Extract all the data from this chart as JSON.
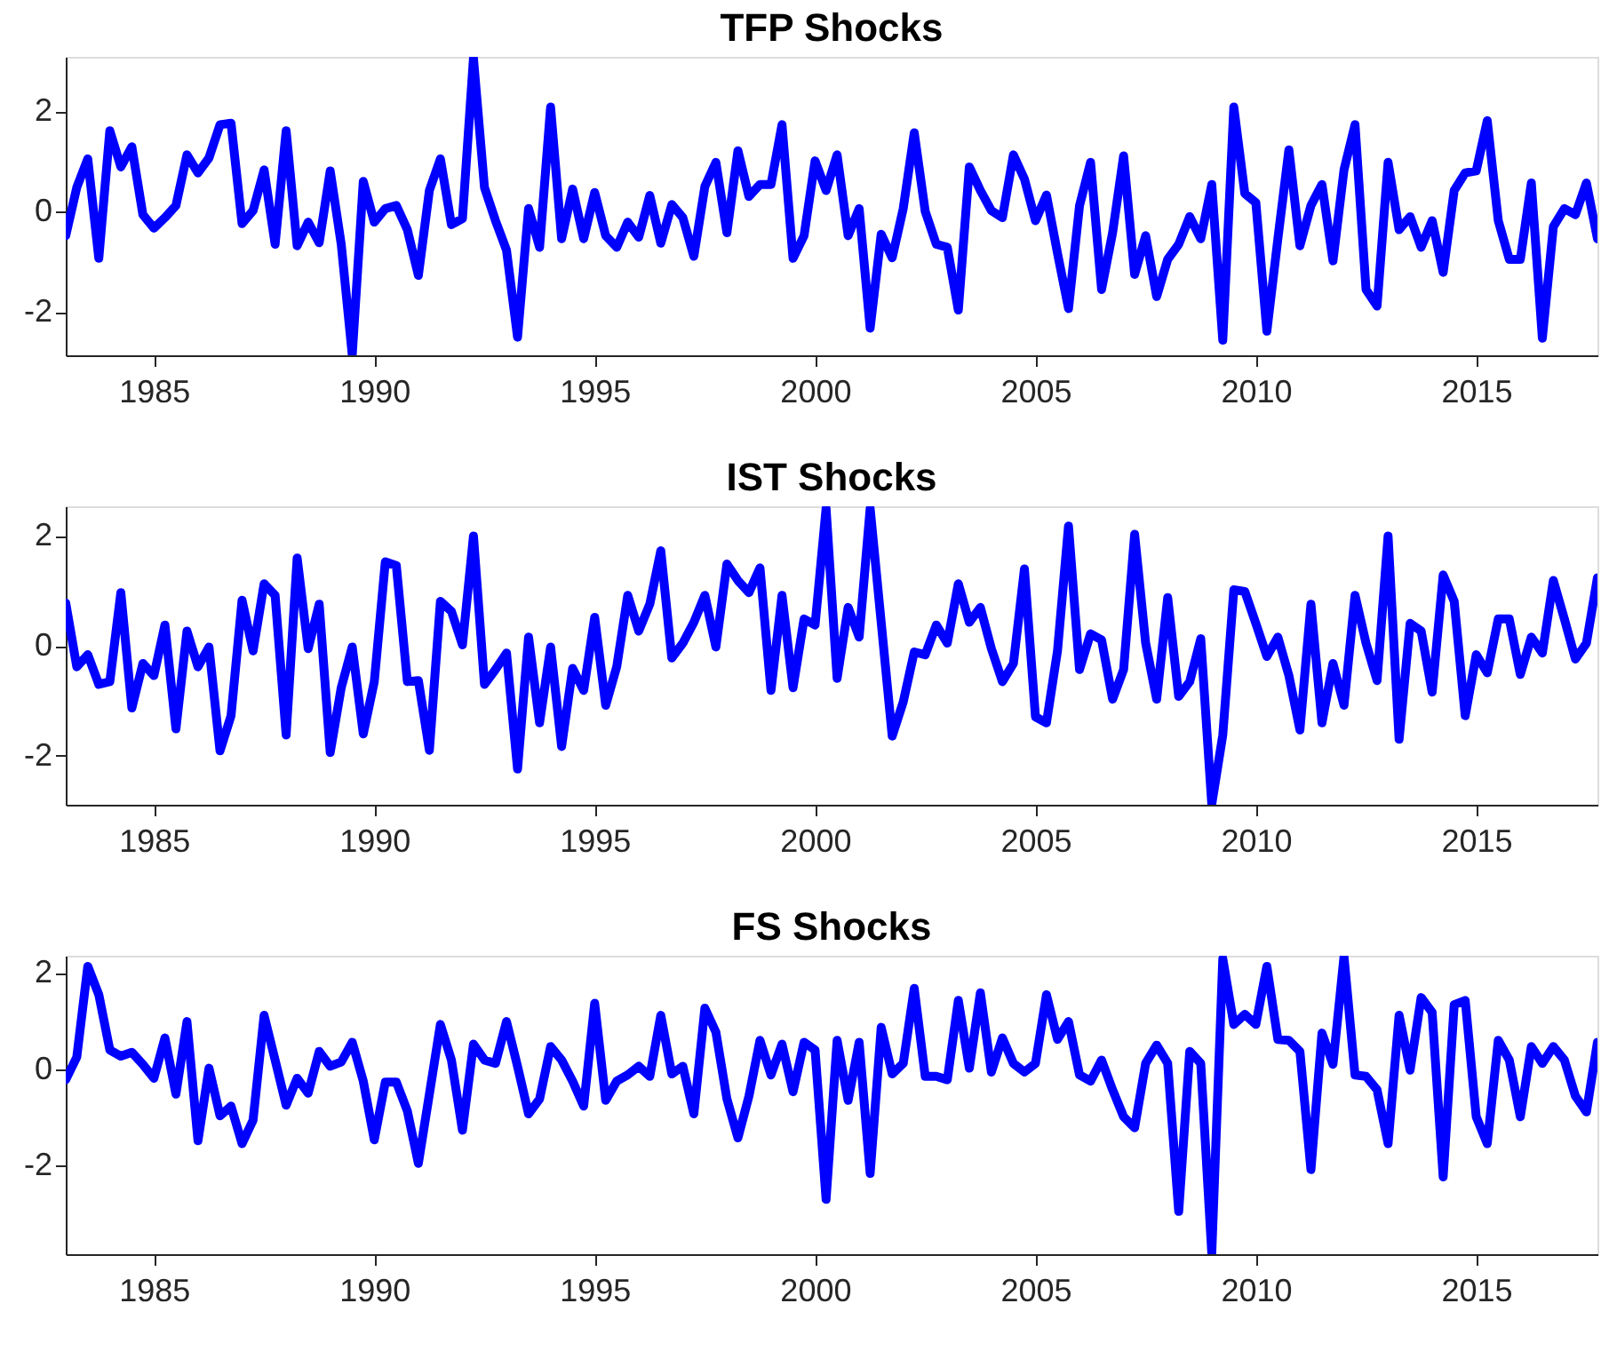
{
  "chart_data": [
    {
      "type": "line",
      "title": "TFP Shocks",
      "xlim": [
        1983,
        2017.75
      ],
      "xticks": [
        1985,
        1990,
        1995,
        2000,
        2005,
        2010,
        2015
      ],
      "ylim": [
        -2.86,
        3.08
      ],
      "yticks": [
        -2,
        0,
        2
      ],
      "grid": false,
      "x": [
        1983,
        1983.25,
        1983.5,
        1983.75,
        1984,
        1984.25,
        1984.5,
        1984.75,
        1985,
        1985.25,
        1985.5,
        1985.75,
        1986,
        1986.25,
        1986.5,
        1986.75,
        1987,
        1987.25,
        1987.5,
        1987.75,
        1988,
        1988.25,
        1988.5,
        1988.75,
        1989,
        1989.25,
        1989.5,
        1989.75,
        1990,
        1990.25,
        1990.5,
        1990.75,
        1991,
        1991.25,
        1991.5,
        1991.75,
        1992,
        1992.25,
        1992.5,
        1992.75,
        1993,
        1993.25,
        1993.5,
        1993.75,
        1994,
        1994.25,
        1994.5,
        1994.75,
        1995,
        1995.25,
        1995.5,
        1995.75,
        1996,
        1996.25,
        1996.5,
        1996.75,
        1997,
        1997.25,
        1997.5,
        1997.75,
        1998,
        1998.25,
        1998.5,
        1998.75,
        1999,
        1999.25,
        1999.5,
        1999.75,
        2000,
        2000.25,
        2000.5,
        2000.75,
        2001,
        2001.25,
        2001.5,
        2001.75,
        2002,
        2002.25,
        2002.5,
        2002.75,
        2003,
        2003.25,
        2003.5,
        2003.75,
        2004,
        2004.25,
        2004.5,
        2004.75,
        2005,
        2005.25,
        2005.5,
        2005.75,
        2006,
        2006.25,
        2006.5,
        2006.75,
        2007,
        2007.25,
        2007.5,
        2007.75,
        2008,
        2008.25,
        2008.5,
        2008.75,
        2009,
        2009.25,
        2009.5,
        2009.75,
        2010,
        2010.25,
        2010.5,
        2010.75,
        2011,
        2011.25,
        2011.5,
        2011.75,
        2012,
        2012.25,
        2012.5,
        2012.75,
        2013,
        2013.25,
        2013.5,
        2013.75,
        2014,
        2014.25,
        2014.5,
        2014.75,
        2015,
        2015.25,
        2015.5,
        2015.75,
        2016,
        2016.25,
        2016.5,
        2016.75,
        2017,
        2017.25,
        2017.5,
        2017.75
      ],
      "series": [
        {
          "color": "#0000ff",
          "values": [
            -0.48,
            0.48,
            1.05,
            -0.93,
            1.61,
            0.89,
            1.29,
            -0.06,
            -0.33,
            -0.12,
            0.12,
            1.13,
            0.77,
            1.07,
            1.73,
            1.76,
            -0.24,
            0.02,
            0.83,
            -0.65,
            1.61,
            -0.68,
            -0.21,
            -0.62,
            0.81,
            -0.65,
            -2.85,
            0.6,
            -0.21,
            0.06,
            0.12,
            -0.36,
            -1.27,
            0.42,
            1.05,
            -0.26,
            -0.14,
            3.05,
            0.48,
            -0.18,
            -0.77,
            -2.5,
            0.06,
            -0.71,
            2.08,
            -0.54,
            0.45,
            -0.54,
            0.38,
            -0.48,
            -0.71,
            -0.21,
            -0.51,
            0.32,
            -0.63,
            0.14,
            -0.12,
            -0.89,
            0.5,
            0.98,
            -0.42,
            1.21,
            0.3,
            0.54,
            0.54,
            1.73,
            -0.93,
            -0.48,
            1.01,
            0.42,
            1.13,
            -0.48,
            0.06,
            -2.32,
            -0.45,
            -0.92,
            0.06,
            1.57,
            0,
            -0.65,
            -0.71,
            -1.96,
            0.89,
            0.42,
            0.02,
            -0.12,
            1.13,
            0.65,
            -0.18,
            0.33,
            -0.83,
            -1.93,
            0.12,
            0.98,
            -1.55,
            -0.42,
            1.11,
            -1.25,
            -0.48,
            -1.69,
            -0.95,
            -0.65,
            -0.1,
            -0.54,
            0.54,
            -2.56,
            2.08,
            0.36,
            0.18,
            -2.38,
            -0.54,
            1.23,
            -0.68,
            0.12,
            0.54,
            -0.98,
            0.83,
            1.73,
            -1.55,
            -1.88,
            0.98,
            -0.36,
            -0.1,
            -0.71,
            -0.18,
            -1.21,
            0.42,
            0.77,
            0.81,
            1.81,
            -0.18,
            -0.95,
            -0.95,
            0.57,
            -2.52,
            -0.3,
            0.06,
            -0.06,
            0.57,
            -0.54
          ]
        }
      ]
    },
    {
      "type": "line",
      "title": "IST Shocks",
      "xlim": [
        1983,
        2017.75
      ],
      "xticks": [
        1985,
        1990,
        1995,
        2000,
        2005,
        2010,
        2015
      ],
      "ylim": [
        -2.89,
        2.54
      ],
      "yticks": [
        -2,
        0,
        2
      ],
      "grid": false,
      "x": [
        1983,
        1983.25,
        1983.5,
        1983.75,
        1984,
        1984.25,
        1984.5,
        1984.75,
        1985,
        1985.25,
        1985.5,
        1985.75,
        1986,
        1986.25,
        1986.5,
        1986.75,
        1987,
        1987.25,
        1987.5,
        1987.75,
        1988,
        1988.25,
        1988.5,
        1988.75,
        1989,
        1989.25,
        1989.5,
        1989.75,
        1990,
        1990.25,
        1990.5,
        1990.75,
        1991,
        1991.25,
        1991.5,
        1991.75,
        1992,
        1992.25,
        1992.5,
        1992.75,
        1993,
        1993.25,
        1993.5,
        1993.75,
        1994,
        1994.25,
        1994.5,
        1994.75,
        1995,
        1995.25,
        1995.5,
        1995.75,
        1996,
        1996.25,
        1996.5,
        1996.75,
        1997,
        1997.25,
        1997.5,
        1997.75,
        1998,
        1998.25,
        1998.5,
        1998.75,
        1999,
        1999.25,
        1999.5,
        1999.75,
        2000,
        2000.25,
        2000.5,
        2000.75,
        2001,
        2001.25,
        2001.5,
        2001.75,
        2002,
        2002.25,
        2002.5,
        2002.75,
        2003,
        2003.25,
        2003.5,
        2003.75,
        2004,
        2004.25,
        2004.5,
        2004.75,
        2005,
        2005.25,
        2005.5,
        2005.75,
        2006,
        2006.25,
        2006.5,
        2006.75,
        2007,
        2007.25,
        2007.5,
        2007.75,
        2008,
        2008.25,
        2008.5,
        2008.75,
        2009,
        2009.25,
        2009.5,
        2009.75,
        2010,
        2010.25,
        2010.5,
        2010.75,
        2011,
        2011.25,
        2011.5,
        2011.75,
        2012,
        2012.25,
        2012.5,
        2012.75,
        2013,
        2013.25,
        2013.5,
        2013.75,
        2014,
        2014.25,
        2014.5,
        2014.75,
        2015,
        2015.25,
        2015.5,
        2015.75,
        2016,
        2016.25,
        2016.5,
        2016.75,
        2017,
        2017.25,
        2017.5,
        2017.75
      ],
      "series": [
        {
          "color": "#0000ff",
          "values": [
            0.78,
            -0.38,
            -0.16,
            -0.7,
            -0.65,
            0.97,
            -1.13,
            -0.32,
            -0.54,
            0.38,
            -1.51,
            0.27,
            -0.38,
            -0.02,
            -1.91,
            -1.27,
            0.83,
            -0.09,
            1.13,
            0.92,
            -1.62,
            1.6,
            -0.05,
            0.76,
            -1.94,
            -0.76,
            -0.02,
            -1.6,
            -0.65,
            1.53,
            1.46,
            -0.65,
            -0.63,
            -1.9,
            0.81,
            0.63,
            0.02,
            2.0,
            -0.7,
            -0.43,
            -0.13,
            -2.24,
            0.16,
            -1.4,
            -0.02,
            -1.83,
            -0.41,
            -0.81,
            0.52,
            -1.08,
            -0.38,
            0.92,
            0.27,
            0.76,
            1.73,
            -0.22,
            0.05,
            0.43,
            0.92,
            -0.02,
            1.49,
            1.19,
            0.97,
            1.42,
            -0.81,
            0.92,
            -0.76,
            0.49,
            0.38,
            2.5,
            -0.59,
            0.7,
            0.16,
            2.5,
            0.43,
            -1.64,
            -1.02,
            -0.11,
            -0.16,
            0.38,
            0.05,
            1.13,
            0.43,
            0.7,
            -0.05,
            -0.65,
            -0.32,
            1.4,
            -1.29,
            -1.4,
            -0.09,
            2.18,
            -0.43,
            0.22,
            0.11,
            -0.97,
            -0.43,
            2.03,
            0.05,
            -0.97,
            0.88,
            -0.92,
            -0.65,
            0.13,
            -2.88,
            -1.62,
            1.02,
            0.99,
            0.41,
            -0.19,
            0.16,
            -0.54,
            -1.53,
            0.76,
            -1.4,
            -0.32,
            -1.08,
            0.92,
            0.05,
            -0.63,
            2.0,
            -1.7,
            0.41,
            0.27,
            -0.84,
            1.29,
            0.81,
            -1.27,
            -0.16,
            -0.49,
            0.49,
            0.49,
            -0.52,
            0.16,
            -0.13,
            1.19,
            0.49,
            -0.24,
            0.05,
            1.24
          ]
        }
      ]
    },
    {
      "type": "line",
      "title": "FS Shocks",
      "xlim": [
        1983,
        2017.75
      ],
      "xticks": [
        1985,
        1990,
        1995,
        2000,
        2005,
        2010,
        2015
      ],
      "ylim": [
        -3.85,
        2.36
      ],
      "yticks": [
        -2,
        0,
        2
      ],
      "grid": false,
      "x": [
        1983,
        1983.25,
        1983.5,
        1983.75,
        1984,
        1984.25,
        1984.5,
        1984.75,
        1985,
        1985.25,
        1985.5,
        1985.75,
        1986,
        1986.25,
        1986.5,
        1986.75,
        1987,
        1987.25,
        1987.5,
        1987.75,
        1988,
        1988.25,
        1988.5,
        1988.75,
        1989,
        1989.25,
        1989.5,
        1989.75,
        1990,
        1990.25,
        1990.5,
        1990.75,
        1991,
        1991.25,
        1991.5,
        1991.75,
        1992,
        1992.25,
        1992.5,
        1992.75,
        1993,
        1993.25,
        1993.5,
        1993.75,
        1994,
        1994.25,
        1994.5,
        1994.75,
        1995,
        1995.25,
        1995.5,
        1995.75,
        1996,
        1996.25,
        1996.5,
        1996.75,
        1997,
        1997.25,
        1997.5,
        1997.75,
        1998,
        1998.25,
        1998.5,
        1998.75,
        1999,
        1999.25,
        1999.5,
        1999.75,
        2000,
        2000.25,
        2000.5,
        2000.75,
        2001,
        2001.25,
        2001.5,
        2001.75,
        2002,
        2002.25,
        2002.5,
        2002.75,
        2003,
        2003.25,
        2003.5,
        2003.75,
        2004,
        2004.25,
        2004.5,
        2004.75,
        2005,
        2005.25,
        2005.5,
        2005.75,
        2006,
        2006.25,
        2006.5,
        2006.75,
        2007,
        2007.25,
        2007.5,
        2007.75,
        2008,
        2008.25,
        2008.5,
        2008.75,
        2009,
        2009.25,
        2009.5,
        2009.75,
        2010,
        2010.25,
        2010.5,
        2010.75,
        2011,
        2011.25,
        2011.5,
        2011.75,
        2012,
        2012.25,
        2012.5,
        2012.75,
        2013,
        2013.25,
        2013.5,
        2013.75,
        2014,
        2014.25,
        2014.5,
        2014.75,
        2015,
        2015.25,
        2015.5,
        2015.75,
        2016,
        2016.25,
        2016.5,
        2016.75,
        2017,
        2017.25,
        2017.5,
        2017.75
      ],
      "series": [
        {
          "color": "#0000ff",
          "values": [
            -0.22,
            0.25,
            2.14,
            1.55,
            0.4,
            0.27,
            0.35,
            0.1,
            -0.19,
            0.65,
            -0.52,
            0.99,
            -1.49,
            0.02,
            -0.97,
            -0.77,
            -1.55,
            -1.06,
            1.12,
            0.19,
            -0.75,
            -0.19,
            -0.5,
            0.37,
            0.06,
            0.15,
            0.56,
            -0.25,
            -1.47,
            -0.27,
            -0.27,
            -0.87,
            -1.96,
            -0.52,
            0.93,
            0.19,
            -1.27,
            0.52,
            0.19,
            0.12,
            0.99,
            0.06,
            -0.93,
            -0.62,
            0.47,
            0.19,
            -0.25,
            -0.77,
            1.37,
            -0.65,
            -0.25,
            -0.12,
            0.06,
            -0.15,
            1.12,
            -0.1,
            0.06,
            -0.93,
            1.27,
            0.77,
            -0.62,
            -1.43,
            -0.56,
            0.6,
            -0.12,
            0.52,
            -0.47,
            0.56,
            0.4,
            -2.71,
            0.6,
            -0.65,
            0.56,
            -2.17,
            0.87,
            -0.1,
            0.12,
            1.68,
            -0.15,
            -0.15,
            -0.22,
            1.43,
            0.02,
            1.59,
            -0.06,
            0.65,
            0.12,
            -0.06,
            0.12,
            1.55,
            0.62,
            0.99,
            -0.12,
            -0.25,
            0.19,
            -0.43,
            -0.99,
            -1.22,
            0.12,
            0.5,
            0.12,
            -2.96,
            0.37,
            0.12,
            -3.83,
            2.3,
            0.93,
            1.14,
            0.93,
            2.14,
            0.62,
            0.6,
            0.37,
            -2.09,
            0.75,
            0.1,
            2.34,
            -0.12,
            -0.15,
            -0.43,
            -1.55,
            1.12,
            -0.02,
            1.49,
            1.18,
            -2.24,
            1.34,
            1.43,
            -0.99,
            -1.55,
            0.6,
            0.19,
            -0.99,
            0.47,
            0.12,
            0.47,
            0.19,
            -0.56,
            -0.89,
            0.56
          ]
        }
      ]
    }
  ]
}
